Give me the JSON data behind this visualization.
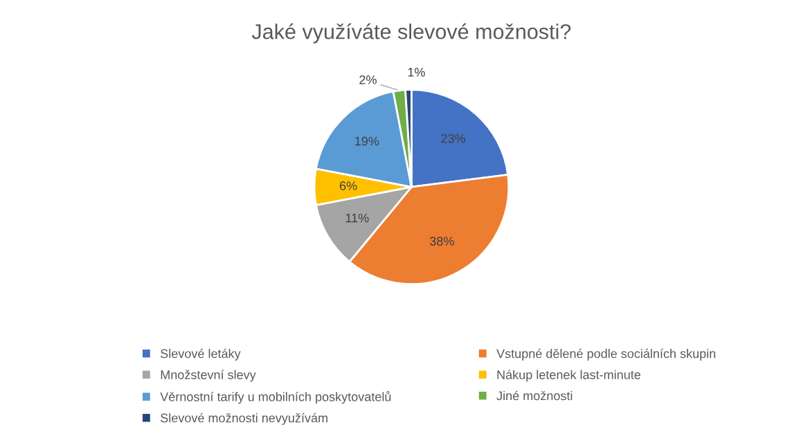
{
  "chart_data": {
    "type": "pie",
    "title": "Jaké využíváte slevové možnosti?",
    "categories": [
      "Slevové letáky",
      "Vstupné dělené podle sociálních skupin",
      "Množstevní slevy",
      "Nákup letenek last-minute",
      "Věrnostní tarify u mobilních poskytovatelů",
      "Jiné možnosti",
      "Slevové možnosti nevyužívám"
    ],
    "values": [
      23,
      38,
      11,
      6,
      19,
      2,
      1
    ],
    "colors": [
      "#4472c4",
      "#ed7d31",
      "#a5a5a5",
      "#ffc000",
      "#5b9bd5",
      "#70ad47",
      "#264478"
    ],
    "value_labels": [
      "23%",
      "38%",
      "11%",
      "6%",
      "19%",
      "2%",
      "1%"
    ],
    "legend": "bottom"
  }
}
